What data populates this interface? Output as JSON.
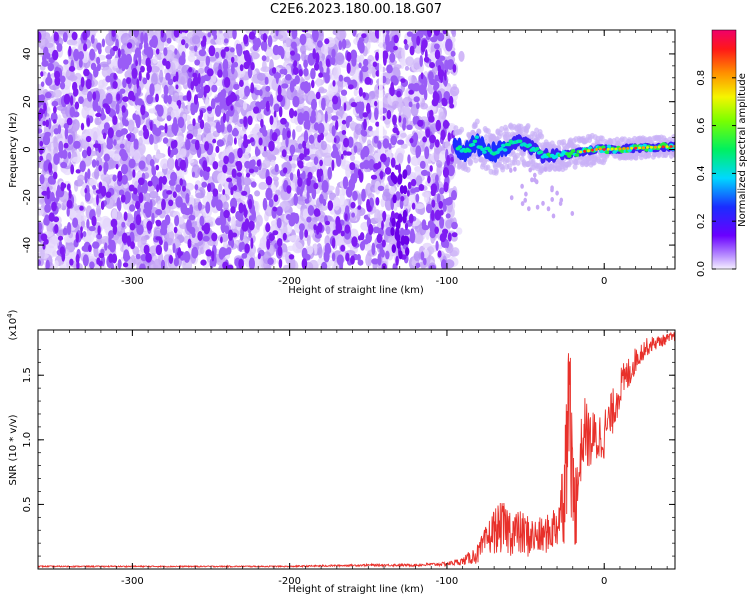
{
  "title": "C2E6.2023.180.00.18.G07",
  "chart_data": [
    {
      "type": "heatmap",
      "name": "spectrogram",
      "xlabel": "Height of straight line (km)",
      "ylabel": "Frequency (Hz)",
      "xlim": [
        -360,
        45
      ],
      "ylim": [
        -50,
        50
      ],
      "x_ticks": [
        -300,
        -200,
        -100,
        0
      ],
      "y_ticks": [
        -40,
        -20,
        0,
        20,
        40
      ],
      "colorbar": {
        "label": "Normalized spectral amplitude",
        "range": [
          0,
          1
        ],
        "ticks": [
          0.0,
          0.2,
          0.4,
          0.6,
          0.8
        ],
        "tick_labels": [
          "0.0",
          "0.2",
          "0.4",
          "0.6",
          "0.8"
        ]
      },
      "description_regions": {
        "noise_region_x": [
          -360,
          -95
        ],
        "signal_trace_x": [
          -95,
          45
        ],
        "signal_frequency_center": 0
      }
    },
    {
      "type": "line",
      "name": "snr",
      "xlabel": "Height of straight line (km)",
      "ylabel": "SNR (10 * v/v)",
      "y_multiplier_label": "(x10",
      "y_multiplier_exp": "4",
      "y_multiplier_close": ")",
      "xlim": [
        -360,
        45
      ],
      "ylim": [
        0,
        1.85
      ],
      "x_ticks": [
        -300,
        -200,
        -100,
        0
      ],
      "y_ticks": [
        0.5,
        1.0,
        1.5
      ],
      "y_tick_labels": [
        "0.5",
        "1.0",
        "1.5"
      ],
      "series": [
        {
          "name": "SNR",
          "color": "#e8302a",
          "x": [
            -360,
            -300,
            -250,
            -200,
            -150,
            -120,
            -100,
            -90,
            -80,
            -75,
            -70,
            -65,
            -60,
            -55,
            -50,
            -45,
            -40,
            -35,
            -30,
            -25,
            -22,
            -20,
            -18,
            -15,
            -12,
            -10,
            -5,
            0,
            5,
            10,
            15,
            20,
            25,
            30,
            35,
            40,
            45
          ],
          "values": [
            0.02,
            0.02,
            0.02,
            0.02,
            0.03,
            0.03,
            0.04,
            0.06,
            0.12,
            0.22,
            0.3,
            0.32,
            0.3,
            0.28,
            0.26,
            0.25,
            0.25,
            0.28,
            0.35,
            0.6,
            1.2,
            0.5,
            0.45,
            0.9,
            1.1,
            1.0,
            1.0,
            1.05,
            1.2,
            1.4,
            1.5,
            1.62,
            1.7,
            1.74,
            1.76,
            1.78,
            1.8
          ],
          "amplitude": [
            0.005,
            0.005,
            0.005,
            0.005,
            0.008,
            0.01,
            0.015,
            0.03,
            0.08,
            0.12,
            0.18,
            0.2,
            0.2,
            0.18,
            0.18,
            0.15,
            0.15,
            0.15,
            0.2,
            0.4,
            0.6,
            0.35,
            0.3,
            0.25,
            0.25,
            0.25,
            0.22,
            0.2,
            0.18,
            0.16,
            0.14,
            0.1,
            0.08,
            0.06,
            0.05,
            0.04,
            0.04
          ]
        }
      ]
    }
  ],
  "colors": {
    "noise": "#7f1cf2",
    "line": "#e8302a",
    "axis": "#000000"
  }
}
